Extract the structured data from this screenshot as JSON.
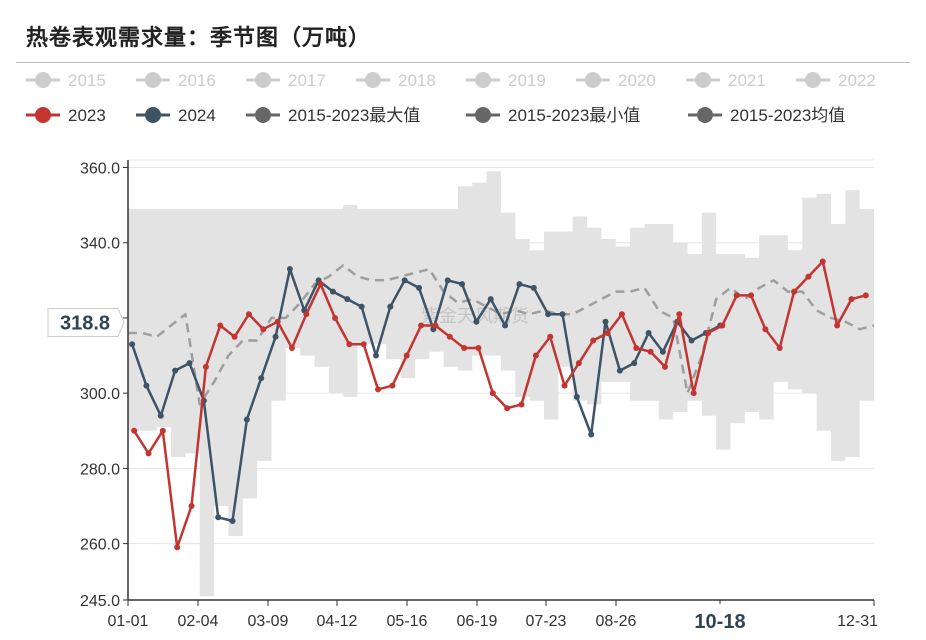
{
  "title": "热卷表观需求量：季节图（万吨）",
  "watermark": "紫金天风期货",
  "colors": {
    "y2023": "#c23531",
    "y2024": "#3d5366",
    "band": "#e3e3e3",
    "avg": "#9e9e9e",
    "legend_off": "#cccccc",
    "legend_dark": "#666666",
    "highlight": "#2f4554"
  },
  "legend": {
    "row1": [
      "2015",
      "2016",
      "2017",
      "2018",
      "2019",
      "2020",
      "2021",
      "2022"
    ],
    "row2": [
      "2023",
      "2024",
      "2015-2023最大值",
      "2015-2023最小值",
      "2015-2023均值"
    ]
  },
  "cursor": {
    "y_label": "318.8",
    "x_label": "10-18"
  },
  "chart_data": {
    "type": "line",
    "title": "热卷表观需求量：季节图（万吨）",
    "ylim": [
      245,
      362
    ],
    "y_ticks": [
      "245.0",
      "260.0",
      "280.0",
      "300.0",
      "320.0",
      "340.0",
      "360.0"
    ],
    "x_ticks": [
      "01-01",
      "02-04",
      "03-09",
      "04-12",
      "05-16",
      "06-19",
      "07-23",
      "08-26",
      "10-18",
      "12-31"
    ],
    "grid": true,
    "legend_position": "top",
    "band": {
      "x": [
        1,
        8,
        15,
        22,
        29,
        36,
        43,
        50,
        57,
        64,
        71,
        78,
        85,
        92,
        99,
        106,
        113,
        120,
        127,
        134,
        141,
        148,
        155,
        162,
        169,
        176,
        183,
        190,
        197,
        204,
        211,
        218,
        225,
        232,
        239,
        246,
        253,
        260,
        267,
        274,
        281,
        288,
        295,
        302,
        309,
        316,
        323,
        330,
        337,
        344,
        351,
        358,
        365
      ],
      "max": [
        349,
        349,
        349,
        349,
        349,
        349,
        349,
        349,
        349,
        349,
        349,
        349,
        349,
        349,
        349,
        350,
        349,
        349,
        349,
        349,
        349,
        349,
        349,
        355,
        356,
        359,
        348,
        341,
        338,
        343,
        343,
        347,
        344,
        341,
        339,
        344,
        345,
        345,
        340,
        337,
        348,
        337,
        337,
        336,
        342,
        342,
        338,
        352,
        353,
        345,
        354,
        349,
        334
      ],
      "min": [
        290,
        290,
        291,
        283,
        284,
        246,
        270,
        262,
        272,
        282,
        298,
        312,
        310,
        307,
        300,
        299,
        313,
        313,
        309,
        304,
        309,
        311,
        307,
        306,
        310,
        310,
        306,
        299,
        298,
        293,
        307,
        298,
        297,
        303,
        303,
        298,
        298,
        293,
        295,
        298,
        294,
        285,
        292,
        295,
        293,
        303,
        301,
        300,
        290,
        282,
        283,
        298,
        299
      ]
    },
    "series": [
      {
        "name": "2023",
        "x": [
          4,
          11,
          18,
          25,
          32,
          39,
          46,
          53,
          60,
          67,
          74,
          81,
          88,
          95,
          102,
          109,
          116,
          123,
          130,
          137,
          144,
          151,
          158,
          165,
          172,
          179,
          186,
          193,
          200,
          207,
          214,
          221,
          228,
          235,
          242,
          249,
          256,
          263,
          270,
          277,
          284,
          291,
          298,
          305,
          312,
          319,
          326,
          333,
          340,
          347,
          354,
          361
        ],
        "values": [
          290,
          284,
          290,
          259,
          270,
          307,
          318,
          315,
          321,
          317,
          319,
          312,
          321,
          329,
          320,
          313,
          313,
          301,
          302,
          310,
          318,
          318,
          315,
          312,
          312,
          300,
          296,
          297,
          310,
          315,
          302,
          308,
          314,
          316,
          321,
          312,
          311,
          307,
          321,
          300,
          316,
          318,
          326,
          326,
          317,
          312,
          327,
          331,
          335,
          318,
          325,
          326
        ]
      },
      {
        "name": "2024",
        "x": [
          3,
          10,
          17,
          24,
          31,
          38,
          45,
          52,
          59,
          66,
          73,
          80,
          87,
          94,
          101,
          108,
          115,
          122,
          129,
          136,
          143,
          150,
          157,
          164,
          171,
          178,
          185,
          192,
          199,
          206,
          213,
          220,
          227,
          234,
          241,
          248,
          255,
          262,
          269,
          276,
          283,
          290
        ],
        "values": [
          313,
          302,
          294,
          306,
          308,
          298,
          267,
          266,
          293,
          304,
          315,
          333,
          322,
          330,
          327,
          325,
          323,
          310,
          323,
          330,
          328,
          317,
          330,
          329,
          319,
          325,
          318,
          329,
          328,
          321,
          321,
          299,
          289,
          319,
          306,
          308,
          316,
          311,
          319,
          314,
          316,
          318
        ]
      },
      {
        "name": "2015-2023均值",
        "x": [
          1,
          8,
          15,
          22,
          29,
          36,
          43,
          50,
          57,
          64,
          71,
          78,
          85,
          92,
          99,
          106,
          113,
          120,
          127,
          134,
          141,
          148,
          155,
          162,
          169,
          176,
          183,
          190,
          197,
          204,
          211,
          218,
          225,
          232,
          239,
          246,
          253,
          260,
          267,
          274,
          281,
          288,
          295,
          302,
          309,
          316,
          323,
          330,
          337,
          344,
          351,
          358,
          365
        ],
        "values": [
          316,
          316,
          315,
          318,
          321,
          297,
          303,
          310,
          314,
          314,
          320,
          320,
          324,
          329,
          331,
          334,
          331,
          330,
          330,
          331,
          332,
          333,
          327,
          324,
          325,
          323,
          321,
          322,
          321,
          322,
          321,
          321,
          323,
          325,
          327,
          327,
          328,
          322,
          320,
          300,
          310,
          325,
          328,
          325,
          328,
          330,
          327,
          327,
          322,
          320,
          319,
          317,
          318
        ]
      }
    ]
  }
}
